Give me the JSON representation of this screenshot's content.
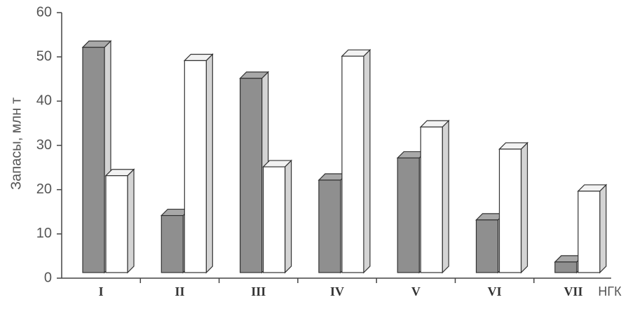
{
  "chart_data": {
    "type": "bar3d",
    "y_label": "Запасы, млн т",
    "x_label": "НГК",
    "categories": [
      "I",
      "II",
      "III",
      "IV",
      "V",
      "VI",
      "VII"
    ],
    "series": [
      {
        "color": "#8f8f8f",
        "values": [
          52,
          14,
          45,
          22,
          27,
          13,
          3.5
        ]
      },
      {
        "color": "#ffffff",
        "values": [
          23,
          49,
          25,
          50,
          34,
          29,
          19.5
        ]
      }
    ],
    "ylim": [
      0,
      60
    ],
    "yticks": [
      0,
      10,
      20,
      30,
      40,
      50,
      60
    ],
    "grid": false
  }
}
